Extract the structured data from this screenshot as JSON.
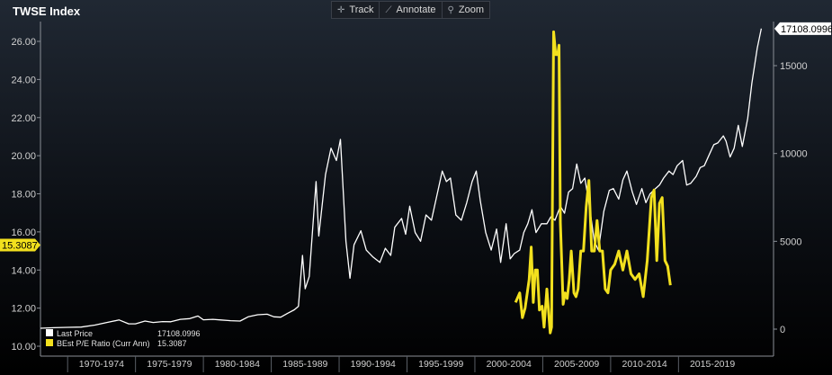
{
  "title": "TWSE Index",
  "toolbar": {
    "track_label": "Track",
    "annotate_label": "Annotate",
    "zoom_label": "Zoom",
    "track_icon": "crosshair-icon",
    "annotate_icon": "pencil-icon",
    "zoom_icon": "magnifier-icon"
  },
  "chart_data": {
    "type": "line",
    "title": "TWSE Index",
    "x_labels": [
      "1970-1974",
      "1975-1979",
      "1980-1984",
      "1985-1989",
      "1990-1994",
      "1995-1999",
      "2000-2004",
      "2005-2009",
      "2010-2014",
      "2015-2019"
    ],
    "left_axis": {
      "ticks": [
        "10.00",
        "12.00",
        "14.00",
        "16.00",
        "18.00",
        "20.00",
        "22.00",
        "24.00",
        "26.00"
      ],
      "ylim": [
        10,
        27
      ]
    },
    "right_axis": {
      "ticks": [
        "0",
        "5000",
        "10000",
        "15000"
      ],
      "ylim": [
        -200,
        17600
      ]
    },
    "last_price_tag": "17108.0996",
    "pe_tag": "15.3087",
    "legend": [
      {
        "label": "Last Price",
        "value": "17108.0996",
        "color": "#ffffff"
      },
      {
        "label": "BEst P/E Ratio (Curr Ann)",
        "value": "15.3087",
        "color": "#f2e01e"
      }
    ],
    "series": [
      {
        "name": "Last Price",
        "axis": "right",
        "color": "#ffffff",
        "points": [
          [
            1968,
            50
          ],
          [
            1969,
            80
          ],
          [
            1970,
            100
          ],
          [
            1971,
            120
          ],
          [
            1972,
            230
          ],
          [
            1973,
            400
          ],
          [
            1973.8,
            520
          ],
          [
            1974.5,
            300
          ],
          [
            1975,
            300
          ],
          [
            1975.7,
            460
          ],
          [
            1976.3,
            380
          ],
          [
            1977,
            430
          ],
          [
            1977.6,
            420
          ],
          [
            1978.3,
            560
          ],
          [
            1979,
            600
          ],
          [
            1979.6,
            750
          ],
          [
            1980,
            530
          ],
          [
            1980.7,
            560
          ],
          [
            1981.3,
            520
          ],
          [
            1982,
            480
          ],
          [
            1982.7,
            460
          ],
          [
            1983.3,
            700
          ],
          [
            1984,
            820
          ],
          [
            1984.7,
            850
          ],
          [
            1985.2,
            700
          ],
          [
            1985.7,
            680
          ],
          [
            1986.2,
            900
          ],
          [
            1986.7,
            1100
          ],
          [
            1987,
            1300
          ],
          [
            1987.3,
            4200
          ],
          [
            1987.5,
            2300
          ],
          [
            1987.8,
            3000
          ],
          [
            1988.3,
            8400
          ],
          [
            1988.5,
            5300
          ],
          [
            1989,
            8800
          ],
          [
            1989.4,
            10300
          ],
          [
            1989.8,
            9600
          ],
          [
            1990.1,
            10800
          ],
          [
            1990.5,
            5000
          ],
          [
            1990.8,
            2900
          ],
          [
            1991.1,
            4800
          ],
          [
            1991.6,
            5600
          ],
          [
            1992,
            4500
          ],
          [
            1992.5,
            4100
          ],
          [
            1993,
            3800
          ],
          [
            1993.4,
            4600
          ],
          [
            1993.8,
            4200
          ],
          [
            1994.1,
            5800
          ],
          [
            1994.6,
            6300
          ],
          [
            1994.9,
            5400
          ],
          [
            1995.2,
            7000
          ],
          [
            1995.6,
            5500
          ],
          [
            1996,
            5000
          ],
          [
            1996.4,
            6500
          ],
          [
            1996.8,
            6200
          ],
          [
            1997.2,
            7600
          ],
          [
            1997.6,
            9000
          ],
          [
            1997.9,
            8400
          ],
          [
            1998.2,
            8600
          ],
          [
            1998.6,
            6500
          ],
          [
            1999,
            6200
          ],
          [
            1999.4,
            7200
          ],
          [
            1999.8,
            8400
          ],
          [
            2000.1,
            9000
          ],
          [
            2000.4,
            7300
          ],
          [
            2000.8,
            5500
          ],
          [
            2001.2,
            4500
          ],
          [
            2001.6,
            5700
          ],
          [
            2001.9,
            3800
          ],
          [
            2002.3,
            6000
          ],
          [
            2002.6,
            4000
          ],
          [
            2002.9,
            4300
          ],
          [
            2003.3,
            4500
          ],
          [
            2003.6,
            5500
          ],
          [
            2003.9,
            6000
          ],
          [
            2004.2,
            6800
          ],
          [
            2004.5,
            5500
          ],
          [
            2004.9,
            6000
          ],
          [
            2005.3,
            6000
          ],
          [
            2005.6,
            6400
          ],
          [
            2005.9,
            6200
          ],
          [
            2006.3,
            7000
          ],
          [
            2006.6,
            6600
          ],
          [
            2006.9,
            7800
          ],
          [
            2007.2,
            8000
          ],
          [
            2007.5,
            9400
          ],
          [
            2007.8,
            8300
          ],
          [
            2008.1,
            8600
          ],
          [
            2008.4,
            7200
          ],
          [
            2008.8,
            5000
          ],
          [
            2009.1,
            4500
          ],
          [
            2009.5,
            6700
          ],
          [
            2009.9,
            7900
          ],
          [
            2010.2,
            8000
          ],
          [
            2010.6,
            7400
          ],
          [
            2010.9,
            8500
          ],
          [
            2011.2,
            9000
          ],
          [
            2011.6,
            7800
          ],
          [
            2011.9,
            7100
          ],
          [
            2012.3,
            8000
          ],
          [
            2012.6,
            7200
          ],
          [
            2012.9,
            7700
          ],
          [
            2013.3,
            8000
          ],
          [
            2013.6,
            8200
          ],
          [
            2013.9,
            8600
          ],
          [
            2014.3,
            9000
          ],
          [
            2014.6,
            8800
          ],
          [
            2014.9,
            9300
          ],
          [
            2015.3,
            9600
          ],
          [
            2015.6,
            8200
          ],
          [
            2015.9,
            8300
          ],
          [
            2016.3,
            8700
          ],
          [
            2016.6,
            9200
          ],
          [
            2016.9,
            9300
          ],
          [
            2017.3,
            10000
          ],
          [
            2017.6,
            10500
          ],
          [
            2017.9,
            10600
          ],
          [
            2018.3,
            11000
          ],
          [
            2018.5,
            10700
          ],
          [
            2018.8,
            9800
          ],
          [
            2019.1,
            10300
          ],
          [
            2019.4,
            11600
          ],
          [
            2019.7,
            10400
          ],
          [
            2020.1,
            12000
          ],
          [
            2020.4,
            14000
          ],
          [
            2020.8,
            16000
          ],
          [
            2021.1,
            17108
          ]
        ]
      },
      {
        "name": "BEst P/E Ratio (Curr Ann)",
        "axis": "left",
        "color": "#f2e01e",
        "points": [
          [
            2003.0,
            12.3
          ],
          [
            2003.3,
            12.8
          ],
          [
            2003.5,
            11.5
          ],
          [
            2003.7,
            12.0
          ],
          [
            2004.0,
            13.5
          ],
          [
            2004.15,
            15.2
          ],
          [
            2004.3,
            12.3
          ],
          [
            2004.45,
            14.0
          ],
          [
            2004.6,
            14.0
          ],
          [
            2004.75,
            11.9
          ],
          [
            2004.95,
            12.1
          ],
          [
            2005.1,
            11.0
          ],
          [
            2005.3,
            13.0
          ],
          [
            2005.55,
            10.7
          ],
          [
            2005.65,
            11.0
          ],
          [
            2005.8,
            26.5
          ],
          [
            2005.95,
            25.3
          ],
          [
            2006.1,
            25.3
          ],
          [
            2006.2,
            25.8
          ],
          [
            2006.3,
            16.5
          ],
          [
            2006.5,
            12.2
          ],
          [
            2006.65,
            12.8
          ],
          [
            2006.8,
            12.5
          ],
          [
            2006.95,
            13.5
          ],
          [
            2007.1,
            15.0
          ],
          [
            2007.3,
            12.8
          ],
          [
            2007.45,
            12.6
          ],
          [
            2007.6,
            13.0
          ],
          [
            2007.8,
            15.0
          ],
          [
            2008.0,
            15.0
          ],
          [
            2008.2,
            17.3
          ],
          [
            2008.4,
            18.7
          ],
          [
            2008.6,
            15.0
          ],
          [
            2008.8,
            15.0
          ],
          [
            2009.0,
            16.6
          ],
          [
            2009.2,
            15.0
          ],
          [
            2009.4,
            15.0
          ],
          [
            2009.6,
            13.0
          ],
          [
            2009.8,
            12.8
          ],
          [
            2010.0,
            14.0
          ],
          [
            2010.3,
            14.3
          ],
          [
            2010.6,
            15.0
          ],
          [
            2010.9,
            14.0
          ],
          [
            2011.2,
            15.0
          ],
          [
            2011.5,
            13.8
          ],
          [
            2011.8,
            13.5
          ],
          [
            2012.1,
            13.8
          ],
          [
            2012.4,
            12.6
          ],
          [
            2012.7,
            14.5
          ],
          [
            2013.0,
            17.8
          ],
          [
            2013.2,
            18.2
          ],
          [
            2013.4,
            14.5
          ],
          [
            2013.6,
            17.5
          ],
          [
            2013.8,
            17.8
          ],
          [
            2014.0,
            14.5
          ],
          [
            2014.2,
            14.2
          ],
          [
            2014.4,
            13.2
          ]
        ]
      }
    ]
  }
}
